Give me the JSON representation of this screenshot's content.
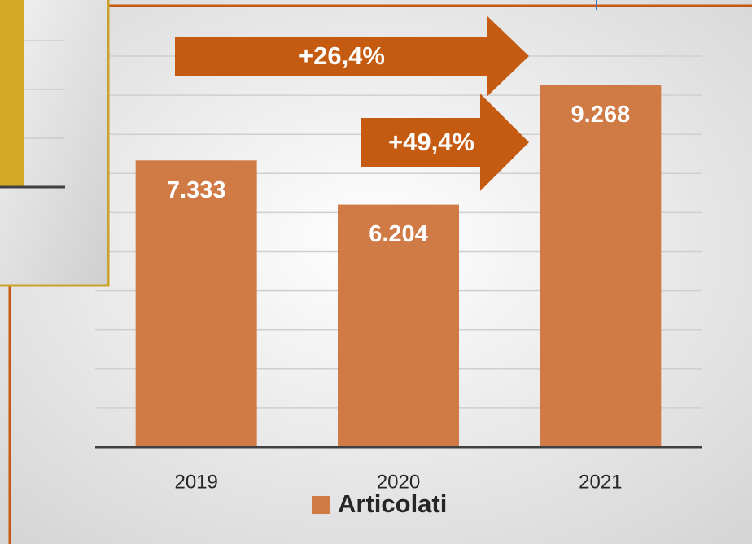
{
  "chart_data": {
    "type": "bar",
    "categories": [
      "2019",
      "2020",
      "2021"
    ],
    "series": [
      {
        "name": "Articolati",
        "color": "#d07a45",
        "values": [
          7333,
          6204,
          9268
        ],
        "value_labels": [
          "7.333",
          "6.204",
          "9.268"
        ]
      }
    ],
    "ylim": [
      0,
      10000
    ],
    "yticks": [
      0,
      1000,
      2000,
      3000,
      4000,
      5000,
      6000,
      7000,
      8000,
      9000,
      10000
    ],
    "grid": true,
    "annotations": [
      "+26,4%",
      "+49,4%"
    ],
    "arrow_color": "#c55a11"
  }
}
